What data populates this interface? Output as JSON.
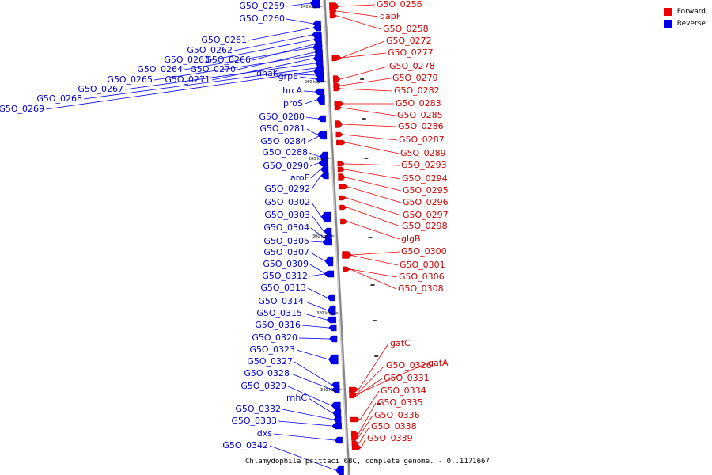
{
  "caption": "Chlamydophila psittaci 6BC, complete genome. - 0..1171667",
  "legend": {
    "forward": {
      "label": "Forward",
      "color": "#ee0000"
    },
    "reverse": {
      "label": "Reverse",
      "color": "#0000ee"
    }
  },
  "ticks": [
    "240 kbp",
    "260 kbp",
    "280 kbp",
    "300 kbp",
    "320 kbp",
    "340 kbp"
  ],
  "genes": {
    "forward": [
      "G5O_0256",
      "dapF",
      "G5O_0258",
      "G5O_0272",
      "G5O_0277",
      "G5O_0278",
      "G5O_0279",
      "G5O_0282",
      "G5O_0283",
      "G5O_0285",
      "G5O_0286",
      "G5O_0287",
      "G5O_0289",
      "G5O_0293",
      "G5O_0294",
      "G5O_0295",
      "G5O_0296",
      "G5O_0297",
      "G5O_0298",
      "glgB",
      "G5O_0300",
      "G5O_0301",
      "G5O_0306",
      "G5O_0308",
      "gatC",
      "G5O_0326",
      "gatA",
      "G5O_0331",
      "G5O_0334",
      "G5O_0335",
      "G5O_0336",
      "G5O_0338",
      "G5O_0339"
    ],
    "reverse": [
      "G5O_0259",
      "G5O_0260",
      "G5O_0261",
      "G5O_0262",
      "G5O_0263",
      "G5O_0266",
      "G5O_0264",
      "G5O_0270",
      "G5O_0265",
      "G5O_0271",
      "G5O_0267",
      "G5O_0268",
      "G5O_0269",
      "dnaK",
      "grpE",
      "hrcA",
      "proS",
      "G5O_0280",
      "G5O_0281",
      "G5O_0284",
      "G5O_0288",
      "G5O_0290",
      "aroF",
      "G5O_0292",
      "G5O_0302",
      "G5O_0303",
      "G5O_0304",
      "G5O_0305",
      "G5O_0307",
      "G5O_0309",
      "G5O_0312",
      "G5O_0313",
      "G5O_0314",
      "G5O_0315",
      "G5O_0316",
      "G5O_0320",
      "G5O_0323",
      "G5O_0327",
      "G5O_0328",
      "G5O_0329",
      "rnhC",
      "G5O_0332",
      "G5O_0333",
      "dxs",
      "G5O_0342"
    ]
  }
}
